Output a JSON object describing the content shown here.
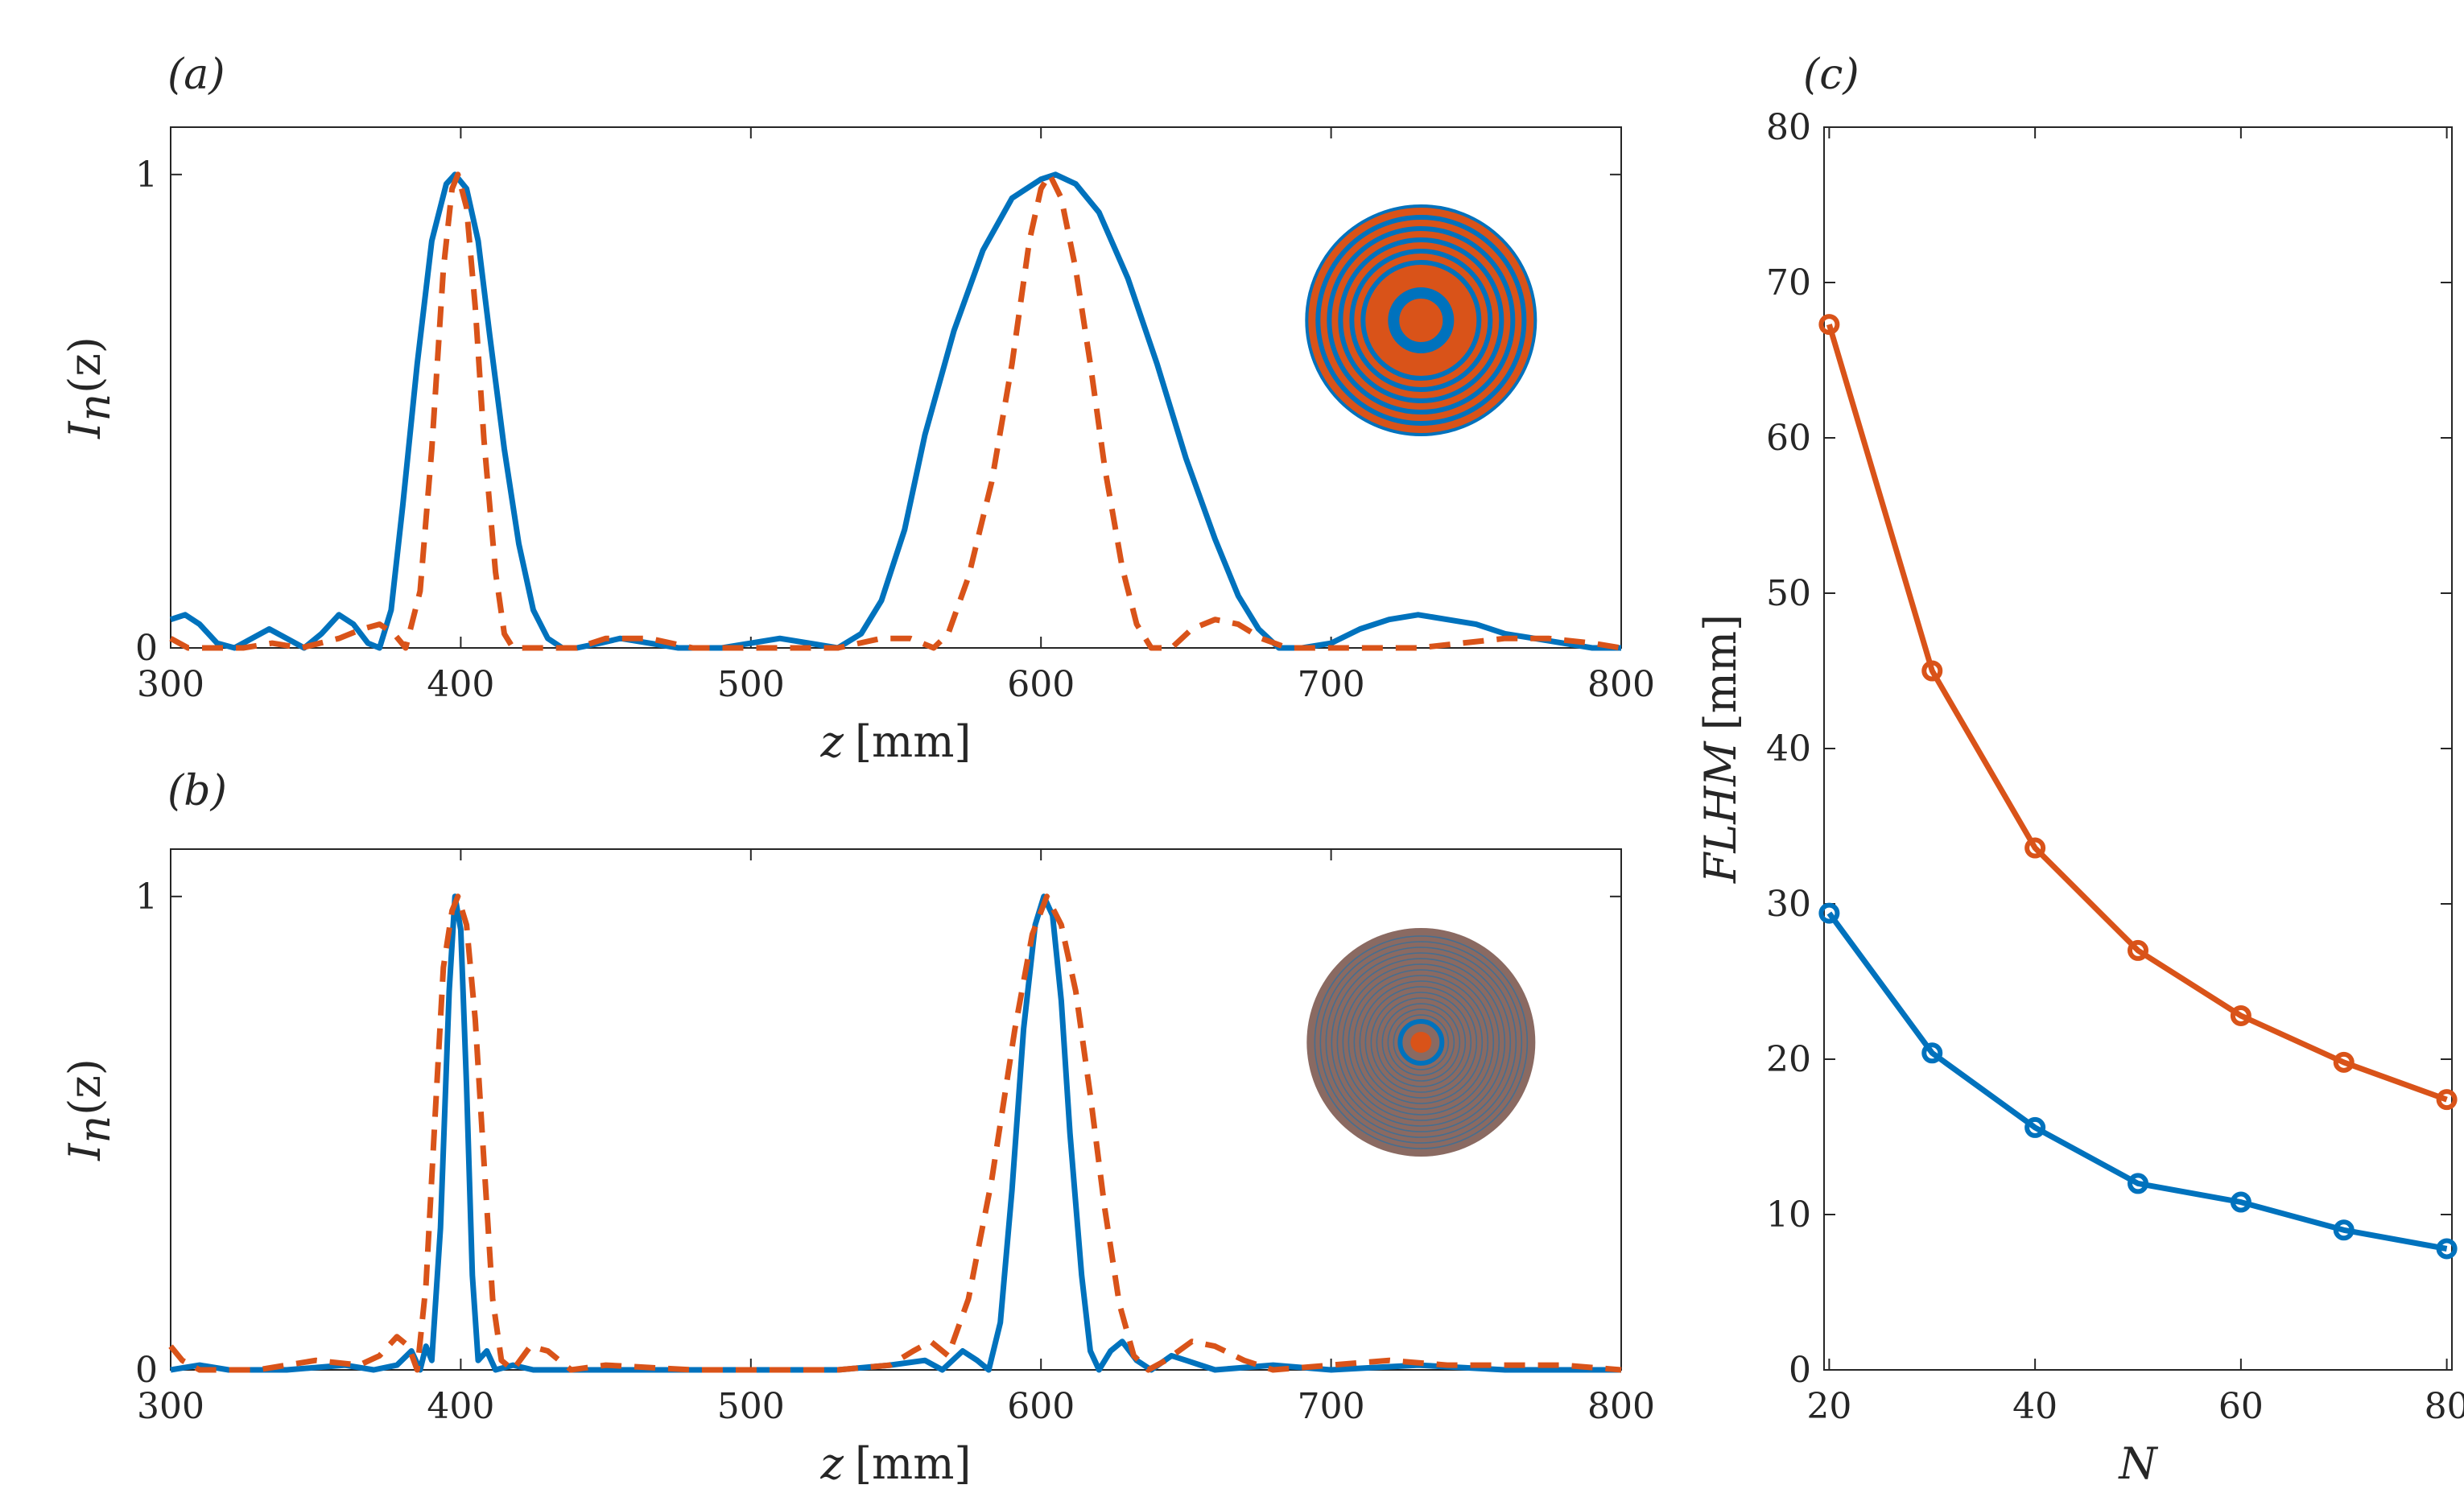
{
  "colors": {
    "blue": "#0072BD",
    "orange": "#D95319",
    "axis": "#262626",
    "disk_b": "#8a6a62"
  },
  "panels": {
    "a": {
      "label": "(a)"
    },
    "b": {
      "label": "(b)"
    },
    "c": {
      "label": "(c)"
    }
  },
  "chart_data": [
    {
      "id": "a",
      "type": "line",
      "title": "",
      "xlabel_var": "z",
      "xlabel_unit": "[mm]",
      "ylabel": "In(z)",
      "ylabel_main": "I",
      "ylabel_sub": "n",
      "ylabel_arg": "(z)",
      "xlim": [
        300,
        800
      ],
      "ylim": [
        0,
        1.1
      ],
      "xticks": [
        300,
        400,
        500,
        600,
        700,
        800
      ],
      "yticks": [
        0,
        1
      ],
      "grid": false,
      "inset": "zone-plate-coarse",
      "series": [
        {
          "name": "solid",
          "style": "solid",
          "color": "#0072BD",
          "points": [
            [
              300,
              0.06
            ],
            [
              305,
              0.07
            ],
            [
              310,
              0.05
            ],
            [
              316,
              0.01
            ],
            [
              322,
              0.0
            ],
            [
              328,
              0.02
            ],
            [
              334,
              0.04
            ],
            [
              340,
              0.02
            ],
            [
              346,
              0.0
            ],
            [
              352,
              0.03
            ],
            [
              358,
              0.07
            ],
            [
              363,
              0.05
            ],
            [
              368,
              0.01
            ],
            [
              372,
              0.0
            ],
            [
              376,
              0.08
            ],
            [
              380,
              0.3
            ],
            [
              385,
              0.6
            ],
            [
              390,
              0.86
            ],
            [
              395,
              0.98
            ],
            [
              398,
              1.0
            ],
            [
              402,
              0.97
            ],
            [
              406,
              0.86
            ],
            [
              410,
              0.66
            ],
            [
              415,
              0.42
            ],
            [
              420,
              0.22
            ],
            [
              425,
              0.08
            ],
            [
              430,
              0.02
            ],
            [
              435,
              0.0
            ],
            [
              440,
              0.0
            ],
            [
              448,
              0.01
            ],
            [
              455,
              0.02
            ],
            [
              465,
              0.01
            ],
            [
              475,
              0.0
            ],
            [
              490,
              0.0
            ],
            [
              500,
              0.01
            ],
            [
              510,
              0.02
            ],
            [
              520,
              0.01
            ],
            [
              530,
              0.0
            ],
            [
              538,
              0.03
            ],
            [
              545,
              0.1
            ],
            [
              553,
              0.25
            ],
            [
              560,
              0.45
            ],
            [
              570,
              0.67
            ],
            [
              580,
              0.84
            ],
            [
              590,
              0.95
            ],
            [
              600,
              0.99
            ],
            [
              605,
              1.0
            ],
            [
              612,
              0.98
            ],
            [
              620,
              0.92
            ],
            [
              630,
              0.78
            ],
            [
              640,
              0.6
            ],
            [
              650,
              0.4
            ],
            [
              660,
              0.23
            ],
            [
              668,
              0.11
            ],
            [
              675,
              0.04
            ],
            [
              682,
              0.0
            ],
            [
              690,
              0.0
            ],
            [
              700,
              0.01
            ],
            [
              710,
              0.04
            ],
            [
              720,
              0.06
            ],
            [
              730,
              0.07
            ],
            [
              740,
              0.06
            ],
            [
              750,
              0.05
            ],
            [
              760,
              0.03
            ],
            [
              770,
              0.02
            ],
            [
              780,
              0.01
            ],
            [
              790,
              0.0
            ],
            [
              800,
              0.0
            ]
          ]
        },
        {
          "name": "dashed",
          "style": "dashed",
          "color": "#D95319",
          "points": [
            [
              300,
              0.02
            ],
            [
              306,
              0.0
            ],
            [
              315,
              0.0
            ],
            [
              325,
              0.0
            ],
            [
              335,
              0.01
            ],
            [
              345,
              0.0
            ],
            [
              358,
              0.02
            ],
            [
              366,
              0.04
            ],
            [
              372,
              0.05
            ],
            [
              377,
              0.03
            ],
            [
              381,
              0.0
            ],
            [
              386,
              0.12
            ],
            [
              390,
              0.42
            ],
            [
              394,
              0.8
            ],
            [
              397,
              0.97
            ],
            [
              399,
              1.0
            ],
            [
              402,
              0.93
            ],
            [
              405,
              0.72
            ],
            [
              408,
              0.44
            ],
            [
              412,
              0.16
            ],
            [
              415,
              0.03
            ],
            [
              418,
              0.0
            ],
            [
              425,
              0.0
            ],
            [
              440,
              0.0
            ],
            [
              450,
              0.02
            ],
            [
              465,
              0.02
            ],
            [
              480,
              0.0
            ],
            [
              500,
              0.0
            ],
            [
              515,
              0.0
            ],
            [
              530,
              0.0
            ],
            [
              545,
              0.02
            ],
            [
              555,
              0.02
            ],
            [
              563,
              0.0
            ],
            [
              568,
              0.03
            ],
            [
              575,
              0.15
            ],
            [
              583,
              0.35
            ],
            [
              590,
              0.6
            ],
            [
              596,
              0.86
            ],
            [
              600,
              0.97
            ],
            [
              603,
              1.0
            ],
            [
              607,
              0.95
            ],
            [
              612,
              0.8
            ],
            [
              617,
              0.6
            ],
            [
              622,
              0.38
            ],
            [
              628,
              0.17
            ],
            [
              633,
              0.05
            ],
            [
              638,
              0.0
            ],
            [
              645,
              0.0
            ],
            [
              652,
              0.04
            ],
            [
              660,
              0.06
            ],
            [
              668,
              0.05
            ],
            [
              676,
              0.02
            ],
            [
              685,
              0.0
            ],
            [
              700,
              0.0
            ],
            [
              715,
              0.0
            ],
            [
              730,
              0.0
            ],
            [
              745,
              0.01
            ],
            [
              760,
              0.02
            ],
            [
              775,
              0.02
            ],
            [
              790,
              0.01
            ],
            [
              800,
              0.0
            ]
          ]
        }
      ]
    },
    {
      "id": "b",
      "type": "line",
      "title": "",
      "xlabel_var": "z",
      "xlabel_unit": "[mm]",
      "ylabel": "In(z)",
      "ylabel_main": "I",
      "ylabel_sub": "n",
      "ylabel_arg": "(z)",
      "xlim": [
        300,
        800
      ],
      "ylim": [
        0,
        1.1
      ],
      "xticks": [
        300,
        400,
        500,
        600,
        700,
        800
      ],
      "yticks": [
        0,
        1
      ],
      "grid": false,
      "inset": "zone-plate-fine",
      "series": [
        {
          "name": "solid",
          "style": "solid",
          "color": "#0072BD",
          "points": [
            [
              300,
              0.0
            ],
            [
              310,
              0.01
            ],
            [
              320,
              0.0
            ],
            [
              340,
              0.0
            ],
            [
              360,
              0.01
            ],
            [
              370,
              0.0
            ],
            [
              378,
              0.01
            ],
            [
              383,
              0.04
            ],
            [
              386,
              0.0
            ],
            [
              388,
              0.05
            ],
            [
              390,
              0.02
            ],
            [
              393,
              0.3
            ],
            [
              396,
              0.8
            ],
            [
              398,
              1.0
            ],
            [
              400,
              0.93
            ],
            [
              402,
              0.6
            ],
            [
              404,
              0.2
            ],
            [
              406,
              0.02
            ],
            [
              409,
              0.04
            ],
            [
              412,
              0.0
            ],
            [
              418,
              0.01
            ],
            [
              425,
              0.0
            ],
            [
              450,
              0.0
            ],
            [
              500,
              0.0
            ],
            [
              530,
              0.0
            ],
            [
              548,
              0.01
            ],
            [
              560,
              0.02
            ],
            [
              566,
              0.0
            ],
            [
              573,
              0.04
            ],
            [
              578,
              0.02
            ],
            [
              582,
              0.0
            ],
            [
              586,
              0.1
            ],
            [
              590,
              0.38
            ],
            [
              594,
              0.72
            ],
            [
              598,
              0.94
            ],
            [
              601,
              1.0
            ],
            [
              604,
              0.96
            ],
            [
              607,
              0.78
            ],
            [
              610,
              0.5
            ],
            [
              614,
              0.2
            ],
            [
              617,
              0.04
            ],
            [
              620,
              0.0
            ],
            [
              624,
              0.04
            ],
            [
              628,
              0.06
            ],
            [
              633,
              0.02
            ],
            [
              638,
              0.0
            ],
            [
              645,
              0.03
            ],
            [
              650,
              0.02
            ],
            [
              660,
              0.0
            ],
            [
              680,
              0.01
            ],
            [
              700,
              0.0
            ],
            [
              730,
              0.01
            ],
            [
              760,
              0.0
            ],
            [
              800,
              0.0
            ]
          ]
        },
        {
          "name": "dashed",
          "style": "dashed",
          "color": "#D95319",
          "points": [
            [
              300,
              0.05
            ],
            [
              304,
              0.02
            ],
            [
              310,
              0.0
            ],
            [
              330,
              0.0
            ],
            [
              350,
              0.02
            ],
            [
              365,
              0.01
            ],
            [
              372,
              0.03
            ],
            [
              378,
              0.07
            ],
            [
              382,
              0.05
            ],
            [
              385,
              0.0
            ],
            [
              388,
              0.18
            ],
            [
              391,
              0.52
            ],
            [
              394,
              0.85
            ],
            [
              397,
              0.97
            ],
            [
              399,
              1.0
            ],
            [
              402,
              0.94
            ],
            [
              405,
              0.74
            ],
            [
              408,
              0.44
            ],
            [
              411,
              0.15
            ],
            [
              414,
              0.02
            ],
            [
              418,
              0.0
            ],
            [
              424,
              0.05
            ],
            [
              430,
              0.04
            ],
            [
              438,
              0.0
            ],
            [
              450,
              0.01
            ],
            [
              480,
              0.0
            ],
            [
              500,
              0.0
            ],
            [
              530,
              0.0
            ],
            [
              548,
              0.01
            ],
            [
              556,
              0.04
            ],
            [
              562,
              0.06
            ],
            [
              568,
              0.03
            ],
            [
              575,
              0.15
            ],
            [
              583,
              0.4
            ],
            [
              591,
              0.72
            ],
            [
              597,
              0.92
            ],
            [
              602,
              1.0
            ],
            [
              607,
              0.94
            ],
            [
              612,
              0.8
            ],
            [
              617,
              0.58
            ],
            [
              622,
              0.34
            ],
            [
              627,
              0.14
            ],
            [
              632,
              0.03
            ],
            [
              637,
              0.0
            ],
            [
              643,
              0.02
            ],
            [
              652,
              0.06
            ],
            [
              660,
              0.05
            ],
            [
              670,
              0.02
            ],
            [
              680,
              0.0
            ],
            [
              700,
              0.01
            ],
            [
              720,
              0.02
            ],
            [
              740,
              0.01
            ],
            [
              760,
              0.01
            ],
            [
              780,
              0.01
            ],
            [
              800,
              0.0
            ]
          ]
        }
      ]
    },
    {
      "id": "c",
      "type": "line",
      "title": "",
      "xlabel": "N",
      "ylabel": "FLHM [mm]",
      "ylabel_var": "FLHM",
      "ylabel_unit": "[mm]",
      "xlim": [
        19.5,
        80.5
      ],
      "ylim": [
        0,
        80
      ],
      "xticks": [
        20,
        40,
        60,
        80
      ],
      "yticks": [
        0,
        10,
        20,
        30,
        40,
        50,
        60,
        70,
        80
      ],
      "grid": false,
      "x": [
        20,
        30,
        40,
        50,
        60,
        70,
        80
      ],
      "series": [
        {
          "name": "upper",
          "color": "#D95319",
          "values": [
            67.3,
            45.0,
            33.6,
            27.0,
            22.8,
            19.8,
            17.4
          ]
        },
        {
          "name": "lower",
          "color": "#0072BD",
          "values": [
            29.4,
            20.4,
            15.6,
            12.0,
            10.8,
            9.0,
            7.8
          ]
        }
      ]
    }
  ]
}
